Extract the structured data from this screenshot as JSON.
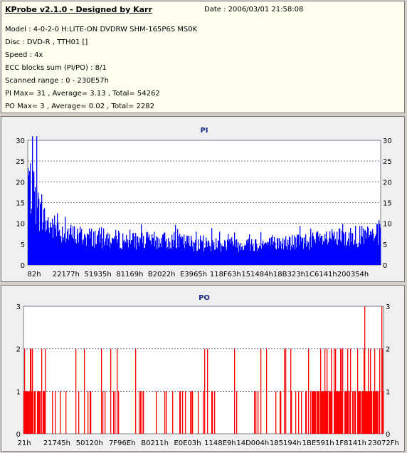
{
  "header": {
    "title": "KProbe v2.1.0 - Designed by Karr",
    "date": "Date : 2006/03/01 21:58:08",
    "lines": [
      "Model : 4-0-2-0 H:LITE-ON DVDRW SHM-165P6S MS0K",
      "Disc : DVD-R , TTH01 []",
      "Speed : 4x",
      "ECC blocks sum (PI/PO) : 8/1",
      "Scanned range : 0 - 230E57h",
      "PI Max= 31 , Average= 3.13 , Total= 54262",
      "PO Max= 3 , Average= 0.02 , Total= 2282"
    ]
  },
  "colors": {
    "pi": "#0000ff",
    "po": "#ff0000",
    "grid": "#7070a0",
    "plot_bg": "#ffffff"
  },
  "chart_data": [
    {
      "type": "bar",
      "title": "PI",
      "ylim": [
        0,
        30
      ],
      "yticks": [
        0,
        5,
        10,
        15,
        20,
        25,
        30
      ],
      "xtick_labels": [
        "82h",
        "22177h",
        "51935h",
        "81169h",
        "B2022h",
        "E3965h",
        "118F63h",
        "151484h",
        "18B323h",
        "1C6141h",
        "200354h"
      ],
      "max": 31,
      "average": 3.13,
      "profile": [
        [
          0,
          30
        ],
        [
          0.01,
          24
        ],
        [
          0.03,
          18
        ],
        [
          0.05,
          14
        ],
        [
          0.08,
          12
        ],
        [
          0.12,
          10
        ],
        [
          0.2,
          9
        ],
        [
          0.3,
          8
        ],
        [
          0.4,
          8
        ],
        [
          0.5,
          7
        ],
        [
          0.6,
          7
        ],
        [
          0.7,
          7
        ],
        [
          0.8,
          8
        ],
        [
          0.9,
          9
        ],
        [
          1.0,
          10
        ]
      ]
    },
    {
      "type": "bar",
      "title": "PO",
      "ylim": [
        0,
        3
      ],
      "yticks": [
        0,
        1,
        2,
        3
      ],
      "xtick_labels": [
        "21h",
        "21745h",
        "50120h",
        "7F96Eh",
        "B0211h",
        "E0E03h",
        "1148E9h",
        "14D004h",
        "185194h",
        "1BE591h",
        "1F8141h",
        "23072Fh"
      ],
      "max": 3,
      "average": 0.02
    }
  ]
}
